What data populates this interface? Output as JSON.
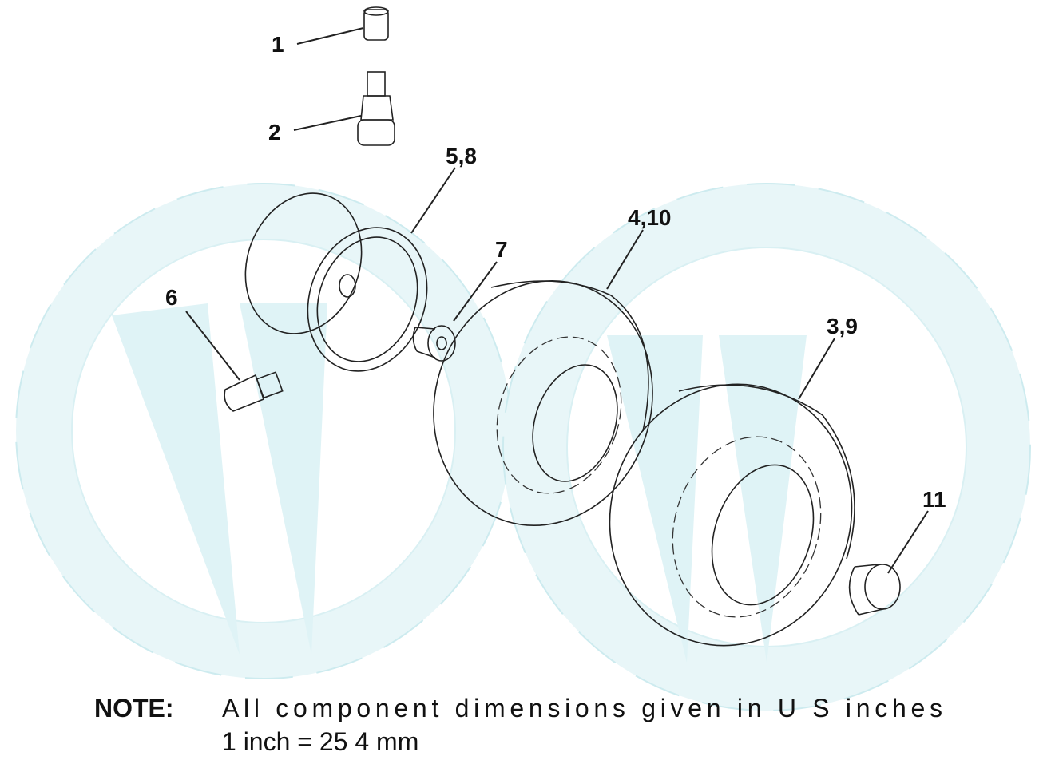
{
  "callouts": [
    "1",
    "2",
    "5,8",
    "4,10",
    "7",
    "6",
    "3,9",
    "11"
  ],
  "note": {
    "heading": "NOTE:",
    "lines": [
      "All component dimensions given in U S  inches",
      "1 inch = 25 4 mm"
    ]
  }
}
